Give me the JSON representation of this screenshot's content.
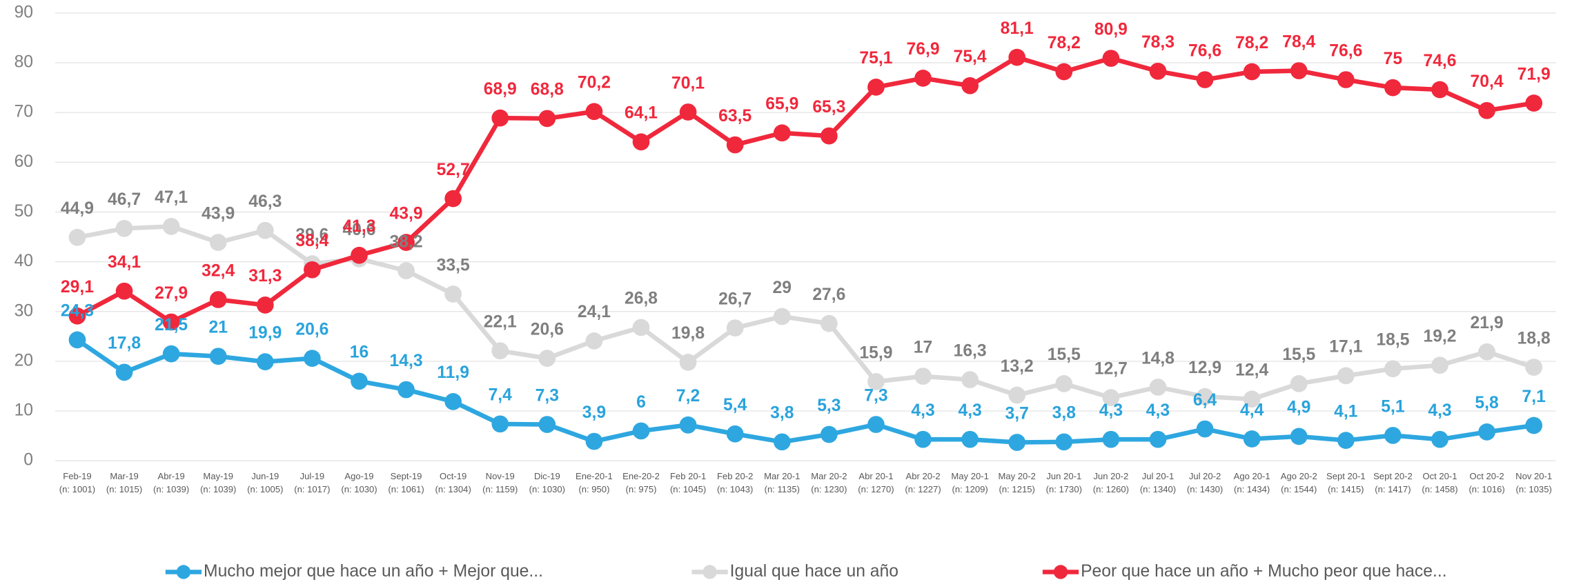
{
  "chart_data": {
    "type": "line",
    "categories": [
      "Feb-19",
      "Mar-19",
      "Abr-19",
      "May-19",
      "Jun-19",
      "Jul-19",
      "Ago-19",
      "Sept-19",
      "Oct-19",
      "Nov-19",
      "Dic-19",
      "Ene-20-1",
      "Ene-20-2",
      "Feb 20-1",
      "Feb 20-2",
      "Mar 20-1",
      "Mar 20-2",
      "Abr 20-1",
      "Abr 20-2",
      "May 20-1",
      "May 20-2",
      "Jun 20-1",
      "Jun 20-2",
      "Jul 20-1",
      "Jul 20-2",
      "Ago 20-1",
      "Ago 20-2",
      "Sept 20-1",
      "Sept 20-2",
      "Oct 20-1",
      "Oct 20-2",
      "Nov 20-1"
    ],
    "category_notes": [
      "(n: 1001)",
      "(n: 1015)",
      "(n: 1039)",
      "(n: 1039)",
      "(n: 1005)",
      "(n: 1017)",
      "(n: 1030)",
      "(n: 1061)",
      "(n: 1304)",
      "(n: 1159)",
      "(n: 1030)",
      "(n: 950)",
      "(n: 975)",
      "(n: 1045)",
      "(n: 1043)",
      "(n: 1135)",
      "(n: 1230)",
      "(n: 1270)",
      "(n: 1227)",
      "(n: 1209)",
      "(n: 1215)",
      "(n: 1730)",
      "(n: 1260)",
      "(n: 1340)",
      "(n: 1430)",
      "(n: 1434)",
      "(n: 1544)",
      "(n: 1415)",
      "(n: 1417)",
      "(n: 1458)",
      "(n: 1016)",
      "(n: 1035)"
    ],
    "ylim": [
      0,
      90
    ],
    "yticks": [
      0,
      10,
      20,
      30,
      40,
      50,
      60,
      70,
      80,
      90
    ],
    "grid": true,
    "legend": "bottom",
    "series": [
      {
        "name": "Mucho mejor que hace un año + Mejor que...",
        "color": "#2ea7e0",
        "label_color": "#29a3dc",
        "values": [
          24.3,
          17.8,
          21.5,
          21,
          19.9,
          20.6,
          16,
          14.3,
          11.9,
          7.4,
          7.3,
          3.9,
          6,
          7.2,
          5.4,
          3.8,
          5.3,
          7.3,
          4.3,
          4.3,
          3.7,
          3.8,
          4.3,
          4.3,
          6.4,
          4.4,
          4.9,
          4.1,
          5.1,
          4.3,
          5.8,
          7.1
        ],
        "value_labels": [
          "24,3",
          "17,8",
          "21,5",
          "21",
          "19,9",
          "20,6",
          "16",
          "14,3",
          "11,9",
          "7,4",
          "7,3",
          "3,9",
          "6",
          "7,2",
          "5,4",
          "3,8",
          "5,3",
          "7,3",
          "4,3",
          "4,3",
          "3,7",
          "3,8",
          "4,3",
          "4,3",
          "6,4",
          "4,4",
          "4,9",
          "4,1",
          "5,1",
          "4,3",
          "5,8",
          "7,1"
        ]
      },
      {
        "name": "Igual que hace un año",
        "color": "#d9d9d9",
        "label_color": "#7f7f7f",
        "values": [
          44.9,
          46.7,
          47.1,
          43.9,
          46.3,
          39.6,
          40.6,
          38.2,
          33.5,
          22.1,
          20.6,
          24.1,
          26.8,
          19.8,
          26.7,
          29,
          27.6,
          15.9,
          17,
          16.3,
          13.2,
          15.5,
          12.7,
          14.8,
          12.9,
          12.4,
          15.5,
          17.1,
          18.5,
          19.2,
          21.9,
          18.8
        ],
        "value_labels": [
          "44,9",
          "46,7",
          "47,1",
          "43,9",
          "46,3",
          "39,6",
          "40,6",
          "38,2",
          "33,5",
          "22,1",
          "20,6",
          "24,1",
          "26,8",
          "19,8",
          "26,7",
          "29",
          "27,6",
          "15,9",
          "17",
          "16,3",
          "13,2",
          "15,5",
          "12,7",
          "14,8",
          "12,9",
          "12,4",
          "15,5",
          "17,1",
          "18,5",
          "19,2",
          "21,9",
          "18,8"
        ]
      },
      {
        "name": "Peor que hace un año + Mucho peor que hace...",
        "color": "#f0283c",
        "label_color": "#f0283c",
        "values": [
          29.1,
          34.1,
          27.9,
          32.4,
          31.3,
          38.4,
          41.3,
          43.9,
          52.7,
          68.9,
          68.8,
          70.2,
          64.1,
          70.1,
          63.5,
          65.9,
          65.3,
          75.1,
          76.9,
          75.4,
          81.1,
          78.2,
          80.9,
          78.3,
          76.6,
          78.2,
          78.4,
          76.6,
          75,
          74.6,
          70.4,
          71.9
        ],
        "value_labels": [
          "29,1",
          "34,1",
          "27,9",
          "32,4",
          "31,3",
          "38,4",
          "41,3",
          "43,9",
          "52,7",
          "68,9",
          "68,8",
          "70,2",
          "64,1",
          "70,1",
          "63,5",
          "65,9",
          "65,3",
          "75,1",
          "76,9",
          "75,4",
          "81,1",
          "78,2",
          "80,9",
          "78,3",
          "76,6",
          "78,2",
          "78,4",
          "76,6",
          "75",
          "74,6",
          "70,4",
          "71,9"
        ]
      }
    ]
  }
}
